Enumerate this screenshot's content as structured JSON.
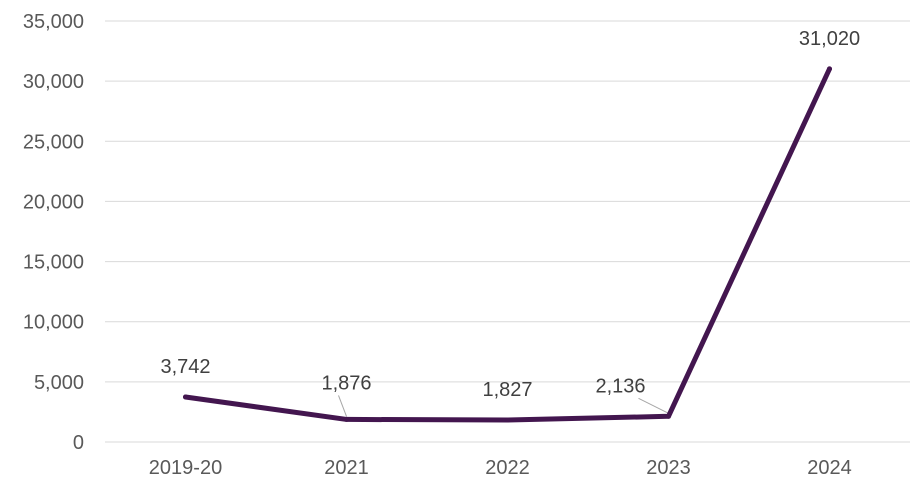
{
  "chart_data": {
    "type": "line",
    "title": "",
    "xlabel": "",
    "ylabel": "",
    "categories": [
      "2019-20",
      "2021",
      "2022",
      "2023",
      "2024"
    ],
    "series": [
      {
        "values": [
          3742,
          1876,
          1827,
          2136,
          31020
        ]
      }
    ],
    "data_labels": [
      "3,742",
      "1,876",
      "1,827",
      "2,136",
      "31,020"
    ],
    "ylim": [
      0,
      35000
    ],
    "yticks": [
      0,
      5000,
      10000,
      15000,
      20000,
      25000,
      30000,
      35000
    ],
    "ytick_labels": [
      "0",
      "5,000",
      "10,000",
      "15,000",
      "20,000",
      "25,000",
      "30,000",
      "35,000"
    ],
    "grid": true,
    "legend": "none",
    "colors": {
      "series": "#43164f",
      "grid": "#d9d9d9",
      "text": "#595959"
    }
  }
}
